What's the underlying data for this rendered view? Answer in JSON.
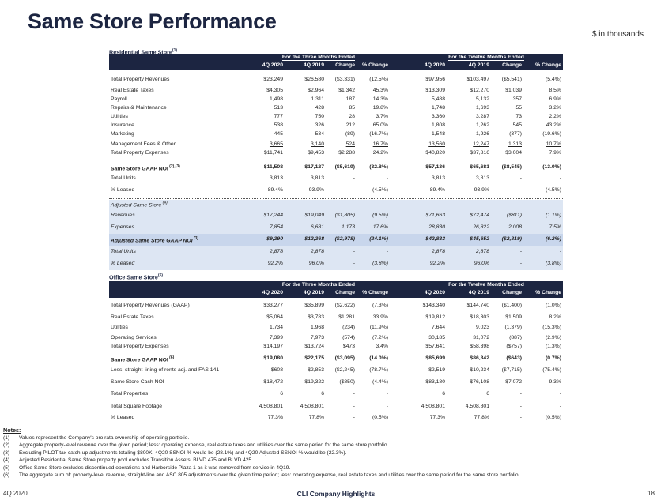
{
  "page_title": "Same Store Performance",
  "units_note": "$ in thousands",
  "residential": {
    "label": "Residential Same Store",
    "label_sup": "(1)",
    "group_three": "For the Three Months Ended",
    "group_twelve": "For the Twelve Months Ended",
    "columns": [
      "4Q 2020",
      "4Q 2019",
      "Change",
      "% Change",
      "4Q 2020",
      "4Q 2019",
      "Change",
      "% Change"
    ],
    "rows": [
      {
        "label": "Total Property Revenues",
        "sup": "",
        "values": [
          "$23,249",
          "$26,580",
          "($3,331)",
          "(12.5%)",
          "$97,956",
          "$103,497",
          "($5,541)",
          "(5.4%)"
        ]
      },
      {
        "label": "Real Estate Taxes",
        "sup": "",
        "values": [
          "$4,305",
          "$2,964",
          "$1,342",
          "45.3%",
          "$13,309",
          "$12,270",
          "$1,039",
          "8.5%"
        ]
      },
      {
        "label": "Payroll",
        "sup": "",
        "values": [
          "1,498",
          "1,311",
          "187",
          "14.3%",
          "5,488",
          "5,132",
          "357",
          "6.9%"
        ]
      },
      {
        "label": "Repairs & Maintenance",
        "sup": "",
        "values": [
          "513",
          "428",
          "85",
          "19.8%",
          "1,748",
          "1,693",
          "55",
          "3.2%"
        ]
      },
      {
        "label": "Utilities",
        "sup": "",
        "values": [
          "777",
          "750",
          "28",
          "3.7%",
          "3,360",
          "3,287",
          "73",
          "2.2%"
        ]
      },
      {
        "label": "Insurance",
        "sup": "",
        "values": [
          "538",
          "326",
          "212",
          "65.0%",
          "1,808",
          "1,262",
          "545",
          "43.2%"
        ]
      },
      {
        "label": "Marketing",
        "sup": "",
        "values": [
          "445",
          "534",
          "(89)",
          "(16.7%)",
          "1,548",
          "1,926",
          "(377)",
          "(19.6%)"
        ]
      },
      {
        "label": "Management Fees & Other",
        "sup": "",
        "values": [
          "3,665",
          "3,140",
          "524",
          "16.7%",
          "13,560",
          "12,247",
          "1,313",
          "10.7%"
        ]
      },
      {
        "label": "Total Property Expenses",
        "sup": "",
        "values": [
          "$11,741",
          "$9,453",
          "$2,288",
          "24.2%",
          "$40,820",
          "$37,816",
          "$3,004",
          "7.9%"
        ]
      },
      {
        "label": "Same Store GAAP NOI",
        "sup": "(2),(3)",
        "values": [
          "$11,508",
          "$17,127",
          "($5,619)",
          "(32.8%)",
          "$57,136",
          "$65,681",
          "($8,545)",
          "(13.0%)"
        ]
      },
      {
        "label": "Total Units",
        "sup": "",
        "values": [
          "3,813",
          "3,813",
          "-",
          "-",
          "3,813",
          "3,813",
          "-",
          "-"
        ]
      },
      {
        "label": "% Leased",
        "sup": "",
        "values": [
          "89.4%",
          "93.9%",
          "-",
          "(4.5%)",
          "89.4%",
          "93.9%",
          "-",
          "(4.5%)"
        ]
      }
    ],
    "adjusted_label": "Adjusted Same Store",
    "adjusted_sup": "(4)",
    "adjusted_rows": [
      {
        "label": "Revenues",
        "sup": "",
        "values": [
          "$17,244",
          "$19,049",
          "($1,805)",
          "(9.5%)",
          "$71,663",
          "$72,474",
          "($811)",
          "(1.1%)"
        ]
      },
      {
        "label": "Expenses",
        "sup": "",
        "values": [
          "7,854",
          "6,681",
          "1,173",
          "17.6%",
          "28,830",
          "26,822",
          "2,008",
          "7.5%"
        ]
      },
      {
        "label": "Adjusted Same Store GAAP NOI",
        "sup": "(3)",
        "values": [
          "$9,390",
          "$12,368",
          "($2,978)",
          "(24.1%)",
          "$42,833",
          "$45,652",
          "($2,819)",
          "(6.2%)"
        ]
      },
      {
        "label": "Total Units",
        "sup": "",
        "values": [
          "2,878",
          "2,878",
          "-",
          "-",
          "2,878",
          "2,878",
          "-",
          "-"
        ]
      },
      {
        "label": "% Leased",
        "sup": "",
        "values": [
          "92.2%",
          "96.0%",
          "-",
          "(3.8%)",
          "92.2%",
          "96.0%",
          "-",
          "(3.8%)"
        ]
      }
    ]
  },
  "office": {
    "label": "Office Same Store",
    "label_sup": "(5)",
    "group_three": "For the Three Months Ended",
    "group_twelve": "For the Twelve Months Ended",
    "columns": [
      "4Q 2020",
      "4Q 2019",
      "Change",
      "% Change",
      "4Q 2020",
      "4Q 2019",
      "Change",
      "% Change"
    ],
    "rows": [
      {
        "label": "Total Property Revenues (GAAP)",
        "sup": "",
        "values": [
          "$33,277",
          "$35,899",
          "($2,622)",
          "(7.3%)",
          "$143,340",
          "$144,740",
          "($1,400)",
          "(1.0%)"
        ]
      },
      {
        "label": "Real Estate Taxes",
        "sup": "",
        "values": [
          "$5,064",
          "$3,783",
          "$1,281",
          "33.9%",
          "$19,812",
          "$18,303",
          "$1,509",
          "8.2%"
        ]
      },
      {
        "label": "Utilities",
        "sup": "",
        "values": [
          "1,734",
          "1,968",
          "(234)",
          "(11.9%)",
          "7,644",
          "9,023",
          "(1,379)",
          "(15.3%)"
        ]
      },
      {
        "label": "Operating Services",
        "sup": "",
        "values": [
          "7,399",
          "7,973",
          "(574)",
          "(7.2%)",
          "30,185",
          "31,072",
          "(887)",
          "(2.9%)"
        ]
      },
      {
        "label": "Total Property Expenses",
        "sup": "",
        "values": [
          "$14,197",
          "$13,724",
          "$473",
          "3.4%",
          "$57,641",
          "$58,398",
          "($757)",
          "(1.3%)"
        ]
      },
      {
        "label": "Same Store GAAP NOI",
        "sup": "(6)",
        "values": [
          "$19,080",
          "$22,175",
          "($3,095)",
          "(14.0%)",
          "$85,699",
          "$86,342",
          "($643)",
          "(0.7%)"
        ]
      },
      {
        "label": "Less: straight-lining of rents adj. and FAS 141",
        "sup": "",
        "values": [
          "$608",
          "$2,853",
          "($2,245)",
          "(78.7%)",
          "$2,519",
          "$10,234",
          "($7,715)",
          "(75.4%)"
        ]
      },
      {
        "label": "Same Store Cash NOI",
        "sup": "",
        "values": [
          "$18,472",
          "$19,322",
          "($850)",
          "(4.4%)",
          "$83,180",
          "$76,108",
          "$7,072",
          "9.3%"
        ]
      },
      {
        "label": "Total Properties",
        "sup": "",
        "values": [
          "6",
          "6",
          "-",
          "-",
          "6",
          "6",
          "-",
          "-"
        ]
      },
      {
        "label": "Total Square Footage",
        "sup": "",
        "values": [
          "4,508,801",
          "4,508,801",
          "-",
          "-",
          "4,508,801",
          "4,508,801",
          "-",
          "-"
        ]
      },
      {
        "label": "% Leased",
        "sup": "",
        "values": [
          "77.3%",
          "77.8%",
          "-",
          "(0.5%)",
          "77.3%",
          "77.8%",
          "-",
          "(0.5%)"
        ]
      }
    ]
  },
  "notes": {
    "title": "Notes:",
    "items": [
      {
        "num": "(1)",
        "text": "Values represent the Company's pro rata ownership of operating portfolio."
      },
      {
        "num": "(2)",
        "text": "Aggregate property-level revenue over the given period; less: operating expense, real estate taxes and utilities over the same period for the same store portfolio."
      },
      {
        "num": "(3)",
        "text": "Excluding PILOT tax catch-up adjustments totaling $800K, 4Q20 SSNOI % would be (28.1%) and 4Q20 Adjusted SSNOI % would be (22.3%)."
      },
      {
        "num": "(4)",
        "text": "Adjusted Residential Same Store property pool excludes Transition Assets: BLVD 475 and BLVD 425."
      },
      {
        "num": "(5)",
        "text": "Office Same Store excludes discontinued operations and Harborside Plaza 1 as it was removed from service in 4Q19."
      },
      {
        "num": "(6)",
        "text": "The aggregate sum of: property-level revenue, straight-line and ASC 805 adjustments over the given time period; less: operating expense, real estate taxes and utilities over the same period for the same store portfolio."
      }
    ]
  },
  "footer": {
    "left": "4Q 2020",
    "center": "CLI Company Highlights",
    "page": "18"
  }
}
